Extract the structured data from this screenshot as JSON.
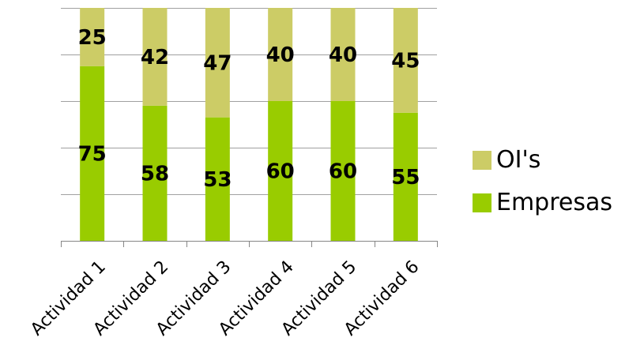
{
  "chart_data": {
    "type": "bar",
    "stacked": true,
    "percent_stacked": true,
    "categories": [
      "Actividad 1",
      "Actividad 2",
      "Actividad 3",
      "Actividad 4",
      "Actividad 5",
      "Actividad 6"
    ],
    "series": [
      {
        "name": "Empresas",
        "values": [
          75,
          58,
          53,
          60,
          60,
          55
        ],
        "color": "#99CC00"
      },
      {
        "name": "OI's",
        "values": [
          25,
          42,
          47,
          40,
          40,
          45
        ],
        "color": "#CCCC66"
      }
    ],
    "ylim": [
      0,
      100
    ],
    "grid": true,
    "legend_position": "right",
    "title": "",
    "xlabel": "",
    "ylabel": ""
  },
  "colors": {
    "gridline": "#A0A0A0",
    "axis": "#868686",
    "text": "#000000"
  }
}
